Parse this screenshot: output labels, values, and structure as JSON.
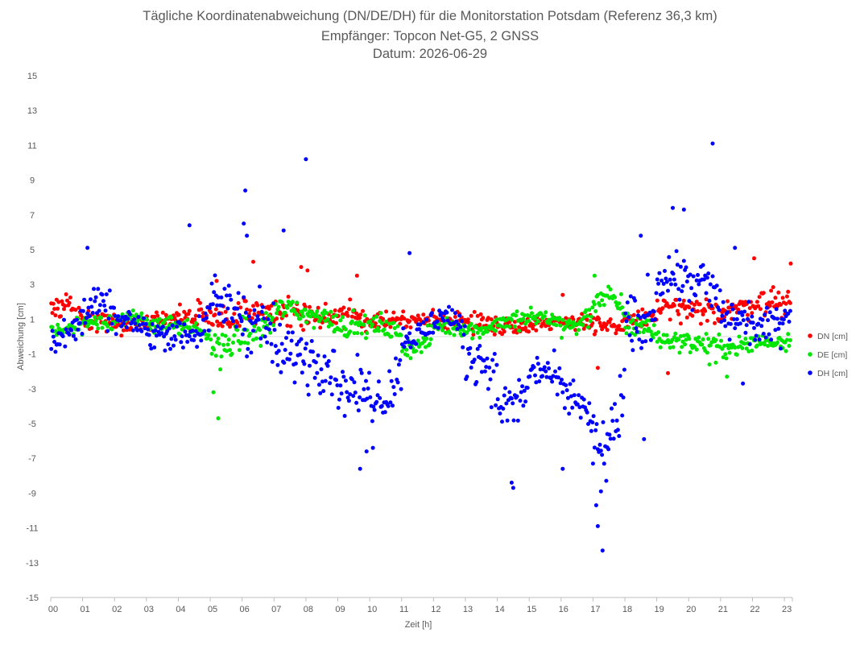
{
  "chart_data": {
    "type": "scatter",
    "title_lines": [
      "Tägliche Koordinatenabweichung (DN/DE/DH) für die Monitorstation Potsdam (Referenz 36,3 km)",
      "Empfänger: Topcon Net-G5, 2 GNSS",
      "Datum: 2026-06-29"
    ],
    "xlabel": "Zeit [h]",
    "ylabel": "Abweichung [cm]",
    "xlim": [
      0,
      23.25
    ],
    "ylim": [
      -15,
      15
    ],
    "x_tick_labels": [
      "00",
      "01",
      "02",
      "03",
      "04",
      "05",
      "06",
      "07",
      "08",
      "09",
      "10",
      "11",
      "12",
      "13",
      "14",
      "15",
      "16",
      "17",
      "18",
      "19",
      "20",
      "21",
      "22",
      "23"
    ],
    "y_ticks": [
      15,
      13,
      11,
      9,
      7,
      5,
      3,
      1,
      -1,
      -3,
      -5,
      -7,
      -9,
      -11,
      -13,
      -15
    ],
    "grid": false,
    "legend_position": "right",
    "points_per_hour": 30,
    "series": [
      {
        "name": "DN [cm]",
        "color": "#ff0000",
        "hourly_mean": [
          1.6,
          0.9,
          0.6,
          0.9,
          1.3,
          1.0,
          1.6,
          1.2,
          1.1,
          1.2,
          1.0,
          0.9,
          1.0,
          0.8,
          0.6,
          0.8,
          0.9,
          0.5,
          0.9,
          1.6,
          1.4,
          1.6,
          2.0,
          2.0
        ],
        "hourly_spread": [
          0.9,
          0.7,
          0.7,
          0.8,
          0.9,
          1.0,
          1.1,
          1.0,
          1.0,
          0.9,
          0.8,
          0.7,
          0.6,
          0.7,
          0.6,
          0.6,
          0.7,
          0.8,
          0.8,
          0.9,
          0.9,
          0.9,
          1.0,
          1.0
        ],
        "outliers": [
          [
            5.2,
            3.2
          ],
          [
            6.35,
            4.3
          ],
          [
            7.85,
            4.0
          ],
          [
            8.05,
            3.8
          ],
          [
            9.6,
            3.5
          ],
          [
            16.05,
            2.4
          ],
          [
            17.15,
            -1.8
          ],
          [
            19.35,
            -2.1
          ],
          [
            22.05,
            4.5
          ],
          [
            23.2,
            4.2
          ]
        ]
      },
      {
        "name": "DE [cm]",
        "color": "#00e600",
        "hourly_mean": [
          0.4,
          0.9,
          1.0,
          0.8,
          0.4,
          -0.5,
          0.3,
          1.6,
          1.2,
          0.6,
          0.6,
          -0.6,
          0.6,
          0.4,
          0.9,
          1.1,
          0.6,
          2.2,
          0.7,
          -0.2,
          -0.4,
          -0.6,
          -0.3,
          -0.2
        ],
        "hourly_spread": [
          0.7,
          0.6,
          0.6,
          0.6,
          0.7,
          1.2,
          1.1,
          0.9,
          0.8,
          0.8,
          0.8,
          0.8,
          0.6,
          0.6,
          0.8,
          0.7,
          0.8,
          1.0,
          0.9,
          0.7,
          0.7,
          0.8,
          0.7,
          0.7
        ],
        "outliers": [
          [
            5.25,
            -4.7
          ],
          [
            5.1,
            -3.2
          ],
          [
            17.05,
            3.5
          ],
          [
            20.65,
            -1.6
          ],
          [
            20.85,
            -1.5
          ],
          [
            21.2,
            -2.3
          ]
        ]
      },
      {
        "name": "DH [cm]",
        "color": "#0000ff",
        "hourly_mean": [
          0.0,
          1.8,
          0.8,
          0.2,
          0.2,
          1.8,
          1.0,
          -1.0,
          -1.2,
          -3.0,
          -3.5,
          0.0,
          1.2,
          -1.2,
          -4.0,
          -2.0,
          -3.5,
          -6.5,
          0.5,
          3.5,
          3.0,
          1.0,
          0.5,
          1.5
        ],
        "hourly_spread": [
          1.2,
          1.3,
          0.8,
          1.1,
          1.4,
          2.2,
          2.5,
          2.0,
          2.3,
          1.8,
          1.6,
          1.2,
          1.3,
          1.8,
          2.0,
          1.4,
          1.6,
          2.6,
          2.4,
          1.8,
          2.0,
          1.6,
          1.3,
          1.2
        ],
        "outliers": [
          [
            1.15,
            5.1
          ],
          [
            4.35,
            6.4
          ],
          [
            6.1,
            8.4
          ],
          [
            6.05,
            6.5
          ],
          [
            6.15,
            5.8
          ],
          [
            7.3,
            6.1
          ],
          [
            8.0,
            10.2
          ],
          [
            9.7,
            -7.6
          ],
          [
            9.9,
            -6.6
          ],
          [
            10.1,
            -6.4
          ],
          [
            11.25,
            4.8
          ],
          [
            14.45,
            -8.4
          ],
          [
            14.5,
            -8.7
          ],
          [
            16.05,
            -7.6
          ],
          [
            17.15,
            -10.9
          ],
          [
            17.3,
            -12.3
          ],
          [
            17.25,
            -8.9
          ],
          [
            17.1,
            -9.7
          ],
          [
            17.0,
            -7.3
          ],
          [
            17.45,
            -5.6
          ],
          [
            18.5,
            5.8
          ],
          [
            19.5,
            7.4
          ],
          [
            19.85,
            7.3
          ],
          [
            20.75,
            11.1
          ],
          [
            21.45,
            5.1
          ],
          [
            21.7,
            -2.7
          ],
          [
            18.6,
            -5.9
          ]
        ]
      }
    ]
  }
}
